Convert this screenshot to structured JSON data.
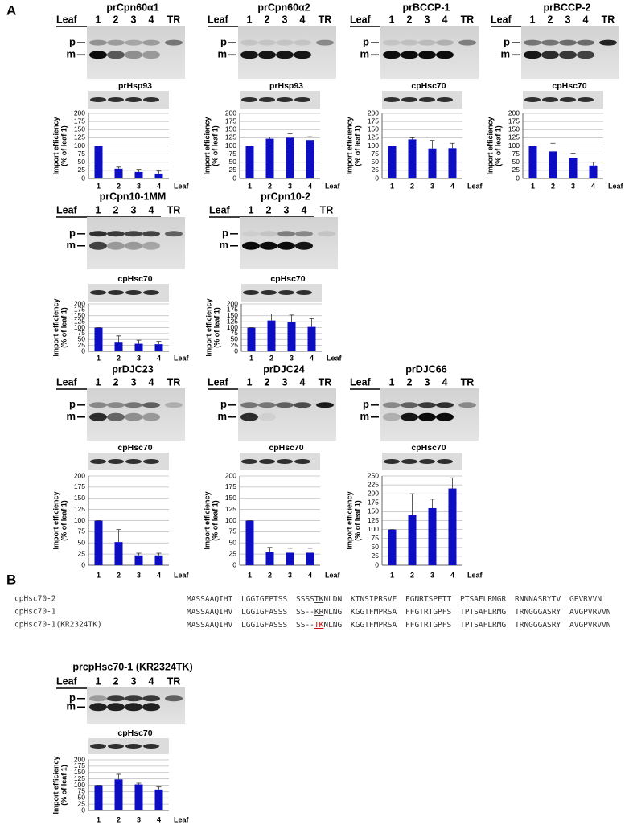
{
  "panel_labels": [
    "A",
    "B"
  ],
  "chart_data": [
    {
      "type": "bar",
      "title": "prCpn60α1",
      "blot": {
        "lanes": [
          "Leaf",
          "1",
          "2",
          "3",
          "4",
          "TR"
        ],
        "bands": [
          "p",
          "m"
        ],
        "loading_control": "prHsp93"
      },
      "y_label": [
        "Import efficiency",
        "(% of leaf 1)"
      ],
      "x_label": "Leaf",
      "categories": [
        "1",
        "2",
        "3",
        "4"
      ],
      "values": [
        100,
        30,
        20,
        15
      ],
      "errors": [
        0,
        5,
        8,
        8
      ],
      "color": "#0d0dc4",
      "ylim": [
        0,
        200
      ],
      "yticks": [
        0,
        25,
        50,
        75,
        100,
        125,
        150,
        175,
        200
      ],
      "grid": true
    },
    {
      "type": "bar",
      "title": "prCpn60α2",
      "blot": {
        "lanes": [
          "Leaf",
          "1",
          "2",
          "3",
          "4",
          "TR"
        ],
        "bands": [
          "p",
          "m"
        ],
        "loading_control": "prHsp93"
      },
      "y_label": [
        "Import efficiency",
        "(% of leaf 1)"
      ],
      "x_label": "Leaf",
      "categories": [
        "1",
        "2",
        "3",
        "4"
      ],
      "values": [
        100,
        122,
        125,
        118
      ],
      "errors": [
        0,
        5,
        12,
        10
      ],
      "color": "#0d0dc4",
      "ylim": [
        0,
        200
      ],
      "yticks": [
        0,
        25,
        50,
        75,
        100,
        125,
        150,
        175,
        200
      ],
      "grid": true
    },
    {
      "type": "bar",
      "title": "prBCCP-1",
      "blot": {
        "lanes": [
          "Leaf",
          "1",
          "2",
          "3",
          "4",
          "TR"
        ],
        "bands": [
          "p",
          "m"
        ],
        "loading_control": "cpHsc70"
      },
      "y_label": [
        "Import efficiency",
        "(% of leaf 1)"
      ],
      "x_label": "Leaf",
      "categories": [
        "1",
        "2",
        "3",
        "4"
      ],
      "values": [
        100,
        120,
        92,
        93
      ],
      "errors": [
        0,
        5,
        25,
        15
      ],
      "color": "#0d0dc4",
      "ylim": [
        0,
        200
      ],
      "yticks": [
        0,
        25,
        50,
        75,
        100,
        125,
        150,
        175,
        200
      ],
      "grid": true
    },
    {
      "type": "bar",
      "title": "prBCCP-2",
      "blot": {
        "lanes": [
          "Leaf",
          "1",
          "2",
          "3",
          "4",
          "TR"
        ],
        "bands": [
          "p",
          "m"
        ],
        "loading_control": "cpHsc70"
      },
      "y_label": [
        "Import efficiency",
        "(% of leaf 1)"
      ],
      "x_label": "Leaf",
      "categories": [
        "1",
        "2",
        "3",
        "4"
      ],
      "values": [
        100,
        83,
        63,
        40
      ],
      "errors": [
        0,
        25,
        15,
        10
      ],
      "color": "#0d0dc4",
      "ylim": [
        0,
        200
      ],
      "yticks": [
        0,
        25,
        50,
        75,
        100,
        125,
        150,
        175,
        200
      ],
      "grid": true
    },
    {
      "type": "bar",
      "title": "prCpn10-1MM",
      "blot": {
        "lanes": [
          "Leaf",
          "1",
          "2",
          "3",
          "4",
          "TR"
        ],
        "bands": [
          "p",
          "m"
        ],
        "loading_control": "cpHsc70"
      },
      "y_label": [
        "Import efficiency",
        "(% of leaf 1)"
      ],
      "x_label": "Leaf",
      "categories": [
        "1",
        "2",
        "3",
        "4"
      ],
      "values": [
        100,
        40,
        32,
        30
      ],
      "errors": [
        0,
        25,
        15,
        12
      ],
      "color": "#0d0dc4",
      "ylim": [
        0,
        200
      ],
      "yticks": [
        0,
        25,
        50,
        75,
        100,
        125,
        150,
        175,
        200
      ],
      "grid": true
    },
    {
      "type": "bar",
      "title": "prCpn10-2",
      "blot": {
        "lanes": [
          "Leaf",
          "1",
          "2",
          "3",
          "4",
          "TR"
        ],
        "bands": [
          "p",
          "m"
        ],
        "loading_control": "cpHsc70"
      },
      "y_label": [
        "Import efficiency",
        "(% of leaf 1)"
      ],
      "x_label": "Leaf",
      "categories": [
        "1",
        "2",
        "3",
        "4"
      ],
      "values": [
        100,
        130,
        125,
        103
      ],
      "errors": [
        0,
        28,
        28,
        35
      ],
      "color": "#0d0dc4",
      "ylim": [
        0,
        200
      ],
      "yticks": [
        0,
        25,
        50,
        75,
        100,
        125,
        150,
        175,
        200
      ],
      "grid": true
    },
    {
      "type": "bar",
      "title": "prDJC23",
      "blot": {
        "lanes": [
          "Leaf",
          "1",
          "2",
          "3",
          "4",
          "TR"
        ],
        "bands": [
          "p",
          "m"
        ],
        "loading_control": "cpHsc70"
      },
      "y_label": [
        "Import efficiency",
        "(% of leaf 1)"
      ],
      "x_label": "Leaf",
      "categories": [
        "1",
        "2",
        "3",
        "4"
      ],
      "values": [
        100,
        52,
        22,
        22
      ],
      "errors": [
        0,
        28,
        5,
        5
      ],
      "color": "#0d0dc4",
      "ylim": [
        0,
        200
      ],
      "yticks": [
        0,
        25,
        50,
        75,
        100,
        125,
        150,
        175,
        200
      ],
      "grid": true
    },
    {
      "type": "bar",
      "title": "prDJC24",
      "blot": {
        "lanes": [
          "Leaf",
          "1",
          "2",
          "3",
          "4",
          "TR"
        ],
        "bands": [
          "p",
          "m"
        ],
        "loading_control": "cpHsc70"
      },
      "y_label": [
        "Import efficiency",
        "(% of leaf 1)"
      ],
      "x_label": "Leaf",
      "categories": [
        "1",
        "2",
        "3",
        "4"
      ],
      "values": [
        100,
        30,
        28,
        28
      ],
      "errors": [
        0,
        10,
        10,
        10
      ],
      "color": "#0d0dc4",
      "ylim": [
        0,
        200
      ],
      "yticks": [
        0,
        25,
        50,
        75,
        100,
        125,
        150,
        175,
        200
      ],
      "grid": true
    },
    {
      "type": "bar",
      "title": "prDJC66",
      "blot": {
        "lanes": [
          "Leaf",
          "1",
          "2",
          "3",
          "4",
          "TR"
        ],
        "bands": [
          "p",
          "m"
        ],
        "loading_control": "cpHsc70"
      },
      "y_label": [
        "Import efficiency",
        "(% of leaf 1)"
      ],
      "x_label": "Leaf",
      "categories": [
        "1",
        "2",
        "3",
        "4"
      ],
      "values": [
        100,
        140,
        160,
        215
      ],
      "errors": [
        0,
        60,
        25,
        30
      ],
      "color": "#0d0dc4",
      "ylim": [
        0,
        250
      ],
      "yticks": [
        0,
        25,
        50,
        75,
        100,
        125,
        150,
        175,
        200,
        225,
        250
      ],
      "grid": true
    },
    {
      "type": "bar",
      "title": "prcpHsc70-1 (KR2324TK)",
      "blot": {
        "lanes": [
          "Leaf",
          "1",
          "2",
          "3",
          "4",
          "TR"
        ],
        "bands": [
          "p",
          "m"
        ],
        "loading_control": "cpHsc70"
      },
      "y_label": [
        "Import efficiency",
        "(% of leaf 1)"
      ],
      "x_label": "Leaf",
      "categories": [
        "1",
        "2",
        "3",
        "4"
      ],
      "values": [
        100,
        123,
        103,
        83
      ],
      "errors": [
        0,
        20,
        5,
        10
      ],
      "color": "#0d0dc4",
      "ylim": [
        0,
        200
      ],
      "yticks": [
        0,
        25,
        50,
        75,
        100,
        125,
        150,
        175,
        200
      ],
      "grid": true
    }
  ],
  "sequences": [
    {
      "name": "cpHsc70-2",
      "groups": [
        [
          "MASSAAQIHI"
        ],
        [
          "LGGIGFPTSS"
        ],
        [
          "SSSS",
          "TK",
          "NLDN"
        ],
        [
          "KTNSIPRSVF"
        ],
        [
          "FGNRTSPFTT"
        ],
        [
          "PTSAFLRMGR"
        ],
        [
          "RNNNASRYTV"
        ],
        [
          "GPVRVVN"
        ]
      ]
    },
    {
      "name": "cpHsc70-1",
      "groups": [
        [
          "MASSAAQIHV"
        ],
        [
          "LGGIGFASSS"
        ],
        [
          "SS--",
          "KR",
          "NLNG"
        ],
        [
          "KGGTFMPRSA"
        ],
        [
          "FFGTRTGPFS"
        ],
        [
          "TPTSAFLRMG"
        ],
        [
          "TRNGGGASRY"
        ],
        [
          "AVGPVRVVN"
        ]
      ]
    },
    {
      "name": "cpHsc70-1(KR2324TK)",
      "groups": [
        [
          "MASSAAQIHV"
        ],
        [
          "LGGIGFASSS"
        ],
        [
          "SS--",
          "TK",
          "NLNG"
        ],
        [
          "KGGTFMPRSA"
        ],
        [
          "FFGTRTGPFS"
        ],
        [
          "TPTSAFLRMG"
        ],
        [
          "TRNGGGASRY"
        ],
        [
          "AVGPVRVVN"
        ]
      ]
    }
  ]
}
